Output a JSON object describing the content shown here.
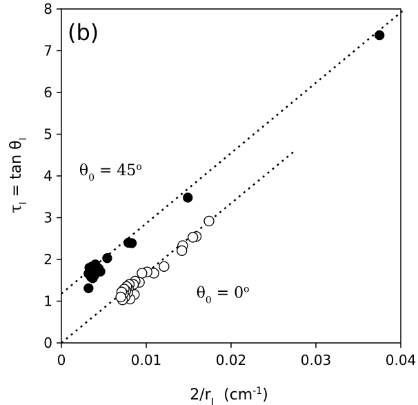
{
  "chart_data": {
    "type": "scatter",
    "panel_label": "(b)",
    "xlabel": {
      "base": "2/r",
      "sub": "I",
      "units_pre": "(cm",
      "units_sup": "-1",
      "units_post": ")"
    },
    "ylabel": {
      "tau": "τ",
      "tau_sub": "I",
      "eq": " = tan θ",
      "theta_sub": "I"
    },
    "xlim": [
      0,
      0.04
    ],
    "ylim": [
      0,
      8
    ],
    "xticks": [
      0,
      0.01,
      0.02,
      0.03,
      0.04
    ],
    "xtick_labels": [
      "0",
      "0.01",
      "0.02",
      "0.03",
      "0.04"
    ],
    "yticks": [
      0,
      1,
      2,
      3,
      4,
      5,
      6,
      7,
      8
    ],
    "ytick_labels": [
      "0",
      "1",
      "2",
      "3",
      "4",
      "5",
      "6",
      "7",
      "8"
    ],
    "grid": false,
    "annotations": [
      {
        "name": "theta-45",
        "theta": "θ",
        "sub": "0",
        "eq": " = 45",
        "sup": "o",
        "x": 0.0021,
        "y": 4.02
      },
      {
        "name": "theta-0",
        "theta": "θ",
        "sub": "0",
        "eq": " = 0",
        "sup": "o",
        "x": 0.0159,
        "y": 1.08
      }
    ],
    "series": [
      {
        "name": "θ0 = 45°",
        "marker": "filled-circle",
        "x": [
          0.0375,
          0.0149,
          0.0083,
          0.0079,
          0.0054,
          0.0046,
          0.0044,
          0.0042,
          0.004,
          0.0039,
          0.0038,
          0.0037,
          0.0036,
          0.0035,
          0.0034,
          0.0033,
          0.0033,
          0.0032,
          0.0032
        ],
        "y": [
          7.37,
          3.48,
          2.39,
          2.4,
          2.03,
          1.71,
          1.78,
          1.7,
          1.88,
          1.62,
          1.75,
          1.55,
          1.83,
          1.58,
          1.75,
          1.68,
          1.8,
          1.66,
          1.31
        ]
      },
      {
        "name": "θ0 = 0°",
        "marker": "open-circle",
        "x": [
          0.0174,
          0.0159,
          0.0155,
          0.0143,
          0.0142,
          0.0121,
          0.0109,
          0.0101,
          0.0095,
          0.0092,
          0.0087,
          0.0086,
          0.0085,
          0.0081,
          0.008,
          0.0079,
          0.0078,
          0.0077,
          0.0076,
          0.0075,
          0.0074,
          0.0073,
          0.0072,
          0.0071,
          0.007
        ],
        "y": [
          2.92,
          2.55,
          2.53,
          2.33,
          2.21,
          1.83,
          1.67,
          1.7,
          1.67,
          1.45,
          1.48,
          1.16,
          1.4,
          1.05,
          1.4,
          1.3,
          1.2,
          1.35,
          1.25,
          1.1,
          1.29,
          1.18,
          1.03,
          1.22,
          1.1
        ]
      }
    ],
    "reference_lines": [
      {
        "name": "fit-45",
        "style": "dotted",
        "x": [
          0,
          0.0405
        ],
        "y": [
          1.18,
          8.0
        ]
      },
      {
        "name": "fit-0",
        "style": "dotted",
        "x": [
          0,
          0.0275
        ],
        "y": [
          0.0,
          4.6
        ]
      }
    ]
  }
}
